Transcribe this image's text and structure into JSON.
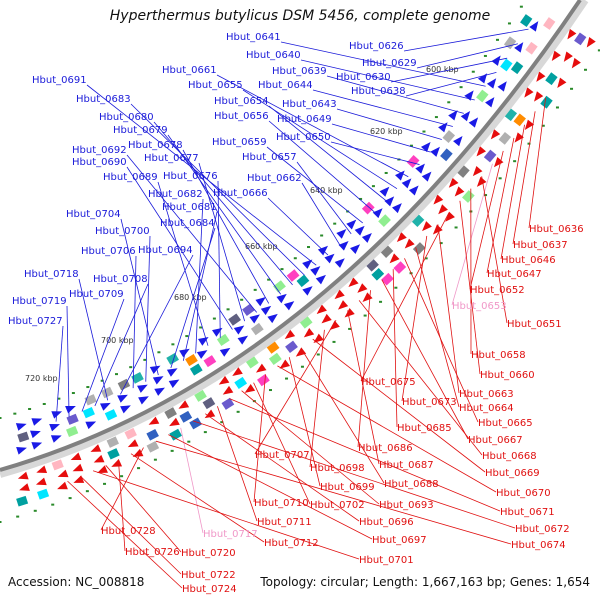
{
  "title": "Hyperthermus butylicus DSM 5456, complete genome",
  "footer": {
    "accession": "Accession: NC_008818",
    "topology": "Topology: circular; Length: 1,667,163 bp; Genes: 1,654"
  },
  "colors": {
    "backbone": "#808080",
    "outer_label": "#1a1ad9",
    "inner_label": "#e01010",
    "rna_label": "#f098c8",
    "forward_arrow": "#1a1ae6",
    "reverse_arrow": "#e60d0d"
  },
  "ticks": [
    {
      "label": "600 kbp"
    },
    {
      "label": "620 kbp"
    },
    {
      "label": "640 kbp"
    },
    {
      "label": "660 kbp"
    },
    {
      "label": "680 kbp"
    },
    {
      "label": "700 kbp"
    },
    {
      "label": "720 kbp"
    }
  ],
  "outer_labels": [
    "Hbut_0626",
    "Hbut_0629",
    "Hbut_0630",
    "Hbut_0638",
    "Hbut_0641",
    "Hbut_0640",
    "Hbut_0639",
    "Hbut_0644",
    "Hbut_0643",
    "Hbut_0649",
    "Hbut_0650",
    "Hbut_0661",
    "Hbut_0655",
    "Hbut_0654",
    "Hbut_0656",
    "Hbut_0659",
    "Hbut_0657",
    "Hbut_0662",
    "Hbut_0666",
    "Hbut_0691",
    "Hbut_0683",
    "Hbut_0680",
    "Hbut_0679",
    "Hbut_0678",
    "Hbut_0692",
    "Hbut_0677",
    "Hbut_0690",
    "Hbut_0676",
    "Hbut_0689",
    "Hbut_0682",
    "Hbut_0681",
    "Hbut_0684",
    "Hbut_0704",
    "Hbut_0700",
    "Hbut_0706",
    "Hbut_0694",
    "Hbut_0718",
    "Hbut_0708",
    "Hbut_0709",
    "Hbut_0719",
    "Hbut_0727"
  ],
  "inner_labels": [
    "Hbut_0636",
    "Hbut_0637",
    "Hbut_0646",
    "Hbut_0647",
    "Hbut_0652",
    "Hbut_0653",
    "Hbut_0651",
    "Hbut_0658",
    "Hbut_0660",
    "Hbut_0675",
    "Hbut_0663",
    "Hbut_0673",
    "Hbut_0664",
    "Hbut_0665",
    "Hbut_0685",
    "Hbut_0667",
    "Hbut_0686",
    "Hbut_0668",
    "Hbut_0687",
    "Hbut_0707",
    "Hbut_0698",
    "Hbut_0669",
    "Hbut_0688",
    "Hbut_0699",
    "Hbut_0670",
    "Hbut_0710",
    "Hbut_0702",
    "Hbut_0693",
    "Hbut_0671",
    "Hbut_0711",
    "Hbut_0696",
    "Hbut_0672",
    "Hbut_0717",
    "Hbut_0697",
    "Hbut_0674",
    "Hbut_0728",
    "Hbut_0712",
    "Hbut_0726",
    "Hbut_0720",
    "Hbut_0701",
    "Hbut_0722",
    "Hbut_0724"
  ],
  "rna_labels": [
    "Hbut_0653",
    "Hbut_0717"
  ]
}
